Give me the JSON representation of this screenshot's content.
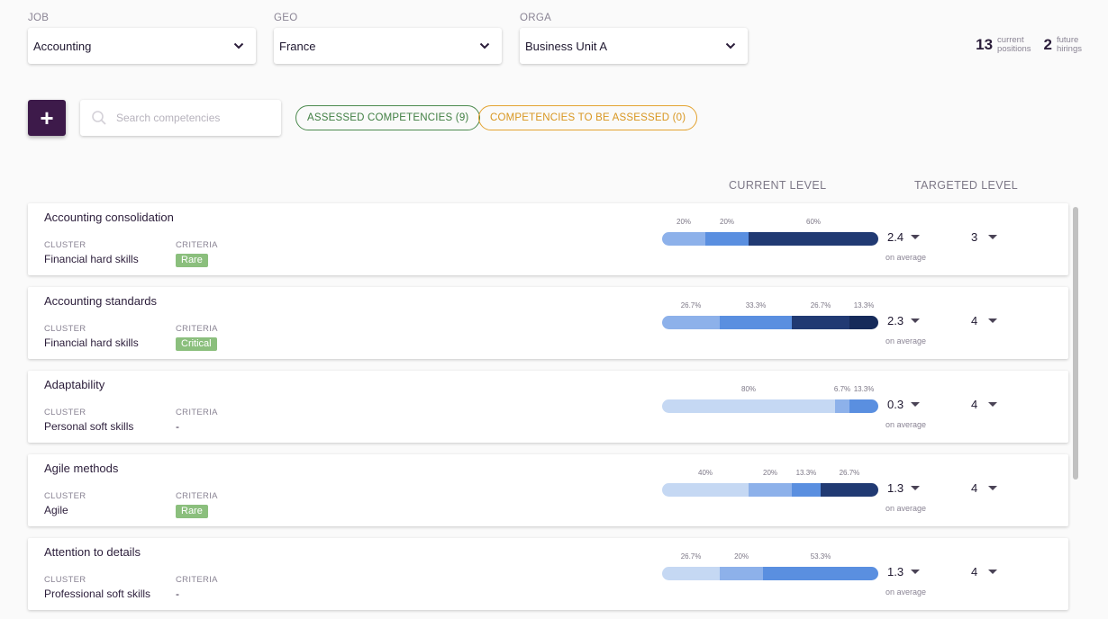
{
  "filters": [
    {
      "label": "JOB",
      "value": "Accounting"
    },
    {
      "label": "GEO",
      "value": "France"
    },
    {
      "label": "ORGA",
      "value": "Business Unit A"
    }
  ],
  "stats": {
    "current_count": "13",
    "current_line1": "current",
    "current_line2": "positions",
    "future_count": "2",
    "future_line1": "future",
    "future_line2": "hirings"
  },
  "toolbar": {
    "add_label": "+",
    "search_placeholder": "Search competencies",
    "assessed_label": "ASSESSED COMPETENCIES (9)",
    "to_assess_label": "COMPETENCIES TO BE ASSESSED (0)"
  },
  "columns": {
    "current": "CURRENT LEVEL",
    "targeted": "TARGETED LEVEL"
  },
  "labels": {
    "cluster": "CLUSTER",
    "criteria": "CRITERIA",
    "avg": "on average"
  },
  "colors": {
    "level1": "#c5d8f3",
    "level2": "#8db1ea",
    "level3": "#5a8fe0",
    "level4": "#213a73",
    "level5": "#152a5a",
    "criteria_badge": "#8bbf7d",
    "accent": "#3d1a4a"
  },
  "rows": [
    {
      "title": "Accounting consolidation",
      "cluster": "Financial hard skills",
      "criteria": "Rare",
      "criteria_badge": true,
      "segments": [
        {
          "pct": 20,
          "label": "20%",
          "level": 2
        },
        {
          "pct": 20,
          "label": "20%",
          "level": 3
        },
        {
          "pct": 60,
          "label": "60%",
          "level": 4
        }
      ],
      "current": "2.4",
      "target": "3"
    },
    {
      "title": "Accounting standards",
      "cluster": "Financial hard skills",
      "criteria": "Critical",
      "criteria_badge": true,
      "segments": [
        {
          "pct": 26.7,
          "label": "26.7%",
          "level": 2
        },
        {
          "pct": 33.3,
          "label": "33.3%",
          "level": 3
        },
        {
          "pct": 26.7,
          "label": "26.7%",
          "level": 4
        },
        {
          "pct": 13.3,
          "label": "13.3%",
          "level": 5
        }
      ],
      "current": "2.3",
      "target": "4"
    },
    {
      "title": "Adaptability",
      "cluster": "Personal soft skills",
      "criteria": "-",
      "criteria_badge": false,
      "segments": [
        {
          "pct": 80,
          "label": "80%",
          "level": 1
        },
        {
          "pct": 6.7,
          "label": "6.7%",
          "level": 2
        },
        {
          "pct": 13.3,
          "label": "13.3%",
          "level": 3
        }
      ],
      "current": "0.3",
      "target": "4"
    },
    {
      "title": "Agile methods",
      "cluster": "Agile",
      "criteria": "Rare",
      "criteria_badge": true,
      "segments": [
        {
          "pct": 40,
          "label": "40%",
          "level": 1
        },
        {
          "pct": 20,
          "label": "20%",
          "level": 2
        },
        {
          "pct": 13.3,
          "label": "13.3%",
          "level": 3
        },
        {
          "pct": 26.7,
          "label": "26.7%",
          "level": 4
        }
      ],
      "current": "1.3",
      "target": "4"
    },
    {
      "title": "Attention to details",
      "cluster": "Professional soft skills",
      "criteria": "-",
      "criteria_badge": false,
      "segments": [
        {
          "pct": 26.7,
          "label": "26.7%",
          "level": 1
        },
        {
          "pct": 20,
          "label": "20%",
          "level": 2
        },
        {
          "pct": 53.3,
          "label": "53.3%",
          "level": 3
        }
      ],
      "current": "1.3",
      "target": "4"
    }
  ]
}
